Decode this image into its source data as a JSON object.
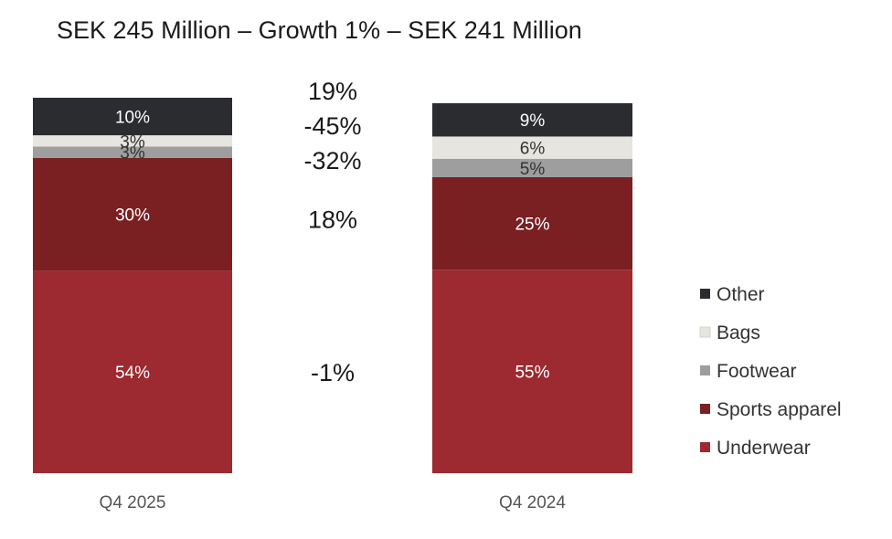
{
  "chart_data": {
    "type": "bar",
    "stacked": true,
    "normalized": true,
    "title": "SEK 245 Million – Growth 1% – SEK 241 Million",
    "categories": [
      "Q4 2025",
      "Q4 2024"
    ],
    "series": [
      {
        "name": "Underwear",
        "values": [
          54,
          55
        ],
        "labels": [
          "54%",
          "55%"
        ],
        "color": "#9c2a30",
        "label_color": "#ffffff"
      },
      {
        "name": "Sports apparel",
        "values": [
          30,
          25
        ],
        "labels": [
          "30%",
          "25%"
        ],
        "color": "#7a1f22",
        "label_color": "#ffffff"
      },
      {
        "name": "Footwear",
        "values": [
          3,
          5
        ],
        "labels": [
          "3%",
          "5%"
        ],
        "color": "#9e9e9e",
        "label_color": "#333333"
      },
      {
        "name": "Bags",
        "values": [
          3,
          6
        ],
        "labels": [
          "3%",
          "6%"
        ],
        "color": "#e7e5df",
        "label_color": "#333333"
      },
      {
        "name": "Other",
        "values": [
          10,
          9
        ],
        "labels": [
          "10%",
          "9%"
        ],
        "color": "#2b2c30",
        "label_color": "#ffffff"
      }
    ],
    "growth_labels": [
      {
        "series": "Other",
        "text": "19%"
      },
      {
        "series": "Bags",
        "text": "-45%"
      },
      {
        "series": "Footwear",
        "text": "-32%"
      },
      {
        "series": "Sports apparel",
        "text": "18%"
      },
      {
        "series": "Underwear",
        "text": "-1%"
      }
    ],
    "legend": {
      "placement": "right",
      "entries": [
        "Other",
        "Bags",
        "Footwear",
        "Sports apparel",
        "Underwear"
      ]
    },
    "ylim": [
      0,
      100
    ],
    "grid": false
  }
}
